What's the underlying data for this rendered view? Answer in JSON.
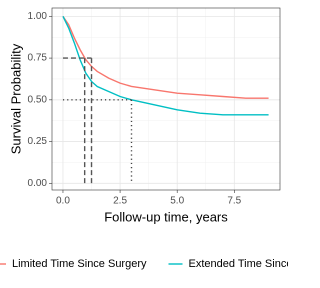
{
  "chart_data": {
    "type": "line",
    "xlabel": "Follow-up time, years",
    "ylabel": "Survival Probability",
    "xlim": [
      -0.48,
      9.5
    ],
    "ylim": [
      -0.04,
      1.05
    ],
    "xticks": [
      {
        "value": 0,
        "label": "0.0"
      },
      {
        "value": 2.5,
        "label": "2.5"
      },
      {
        "value": 5,
        "label": "5.0"
      },
      {
        "value": 7.5,
        "label": "7.5"
      }
    ],
    "yticks": [
      {
        "value": 0,
        "label": "0.00"
      },
      {
        "value": 0.25,
        "label": "0.25"
      },
      {
        "value": 0.5,
        "label": "0.50"
      },
      {
        "value": 0.75,
        "label": "0.75"
      },
      {
        "value": 1,
        "label": "1.00"
      }
    ],
    "grid": true,
    "legend": "bottom",
    "series": [
      {
        "name": "Limited Time Since Surgery",
        "color": "#F8766D",
        "x": [
          0,
          0.25,
          0.5,
          0.75,
          1,
          1.25,
          1.5,
          2,
          2.5,
          3,
          4,
          5,
          6,
          7,
          8,
          9
        ],
        "values": [
          1,
          0.95,
          0.87,
          0.8,
          0.74,
          0.7,
          0.67,
          0.63,
          0.6,
          0.58,
          0.56,
          0.54,
          0.53,
          0.52,
          0.51,
          0.51
        ]
      },
      {
        "name": "Extended Time Since Surgery",
        "color": "#00BFC4",
        "x": [
          0,
          0.25,
          0.5,
          0.75,
          1,
          1.25,
          1.5,
          2,
          2.5,
          3,
          4,
          5,
          6,
          7,
          8,
          9
        ],
        "values": [
          1,
          0.93,
          0.84,
          0.74,
          0.66,
          0.61,
          0.58,
          0.55,
          0.52,
          0.5,
          0.47,
          0.44,
          0.42,
          0.41,
          0.41,
          0.41
        ]
      }
    ],
    "quantile_lines": [
      {
        "y": 0.75,
        "x": [
          0.95,
          1.25
        ],
        "style": "dashed"
      },
      {
        "y": 0.5,
        "x": [
          3
        ],
        "style": "dotted"
      }
    ]
  }
}
